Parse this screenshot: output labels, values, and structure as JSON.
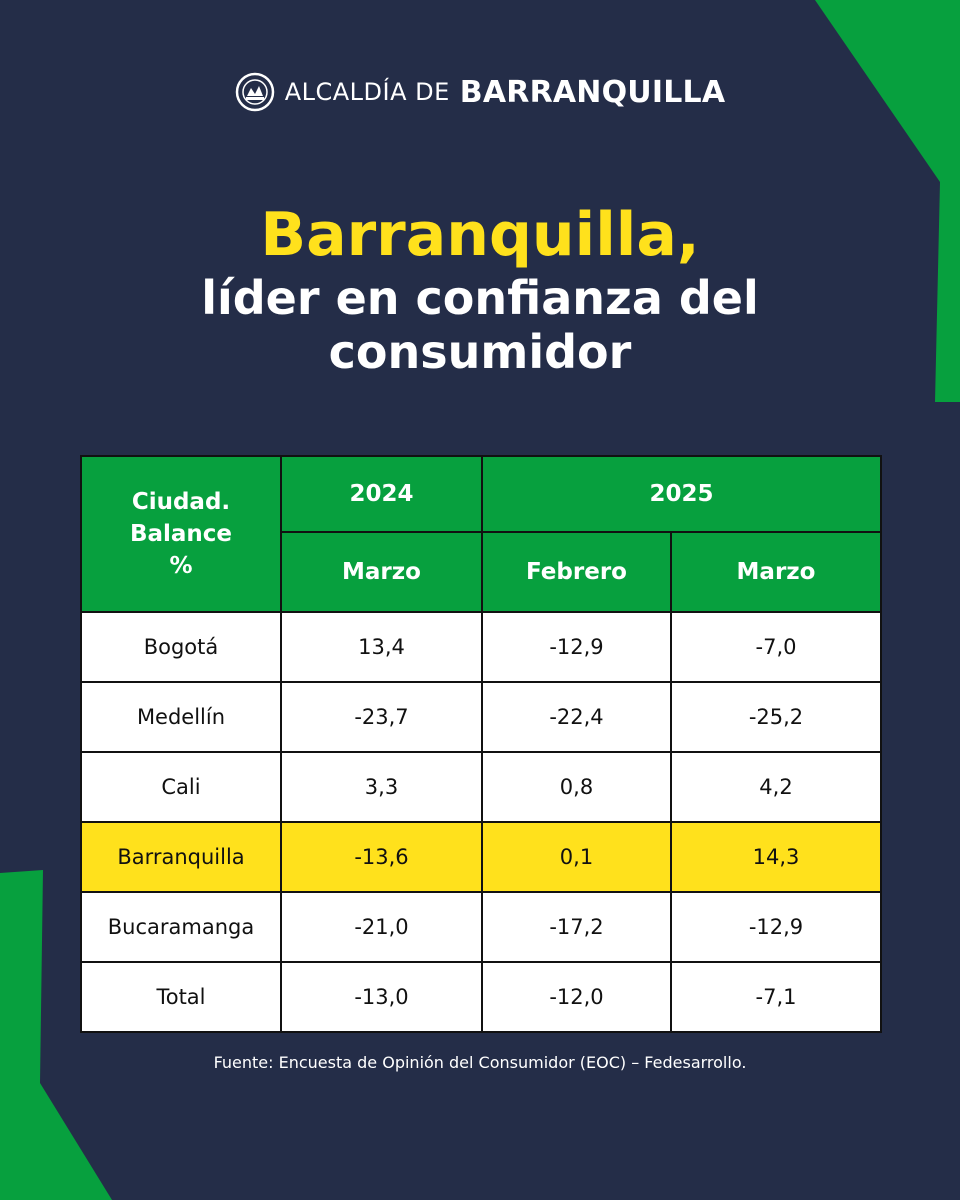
{
  "header": {
    "org_prefix": "ALCALDÍA DE",
    "org_name": "BARRANQUILLA",
    "seal_icon": "city-seal-icon"
  },
  "title": {
    "highlight": "Barranquilla,",
    "subtitle": "líder en confianza del consumidor"
  },
  "table": {
    "corner_header": "Ciudad. Balance %",
    "year_2024": "2024",
    "year_2025": "2025",
    "months": [
      "Marzo",
      "Febrero",
      "Marzo"
    ],
    "rows": [
      {
        "city": "Bogotá",
        "values": [
          "13,4",
          "-12,9",
          "-7,0"
        ]
      },
      {
        "city": "Medellín",
        "values": [
          "-23,7",
          "-22,4",
          "-25,2"
        ]
      },
      {
        "city": "Cali",
        "values": [
          "3,3",
          "0,8",
          "4,2"
        ]
      },
      {
        "city": "Barranquilla",
        "values": [
          "-13,6",
          "0,1",
          "14,3"
        ]
      },
      {
        "city": "Bucaramanga",
        "values": [
          "-21,0",
          "-17,2",
          "-12,9"
        ]
      },
      {
        "city": "Total",
        "values": [
          "-13,0",
          "-12,0",
          "-7,1"
        ]
      }
    ]
  },
  "source": "Fuente: Encuesta de Opinión del Consumidor (EOC) – Fedesarrollo.",
  "colors": {
    "background": "#242d48",
    "accent_green": "#07a03e",
    "highlight_yellow": "#ffe11c"
  }
}
